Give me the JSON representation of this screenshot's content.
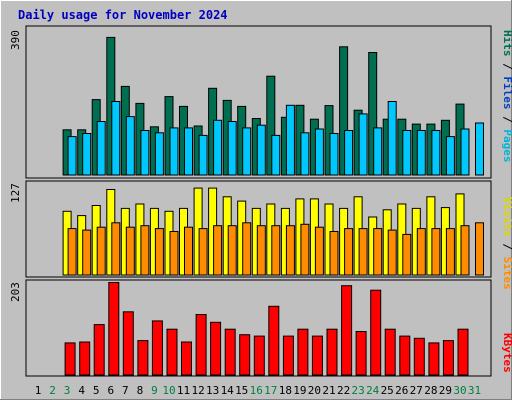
{
  "chart_data": {
    "type": "bar",
    "title": "Daily usage for November 2024",
    "categories": [
      "1",
      "2",
      "3",
      "4",
      "5",
      "6",
      "7",
      "8",
      "9",
      "10",
      "11",
      "12",
      "13",
      "14",
      "15",
      "16",
      "17",
      "18",
      "19",
      "20",
      "21",
      "22",
      "23",
      "24",
      "25",
      "26",
      "27",
      "28",
      "29",
      "30",
      "31"
    ],
    "weekend_days": [
      "2",
      "3",
      "9",
      "10",
      "16",
      "17",
      "23",
      "24",
      "30",
      "31"
    ],
    "panels": [
      {
        "id": "pages-files-hits",
        "ylabel_max": "390",
        "ymax": 390,
        "series": [
          {
            "name": "Hits",
            "color": "#006E50",
            "values": [
              null,
              null,
              120,
              120,
              200,
              365,
              235,
              190,
              128,
              208,
              182,
              130,
              230,
              198,
              182,
              150,
              262,
              153,
              185,
              148,
              184,
              340,
              172,
              325,
              148,
              148,
              135,
              135,
              145,
              188,
              null
            ]
          },
          {
            "name": "Files",
            "color": "#00C8FF",
            "values": [
              null,
              null,
              102,
              110,
              142,
              195,
              155,
              118,
              112,
              125,
              125,
              105,
              145,
              142,
              125,
              132,
              105,
              185,
              112,
              122,
              110,
              118,
              162,
              125,
              195,
              118,
              118,
              118,
              102,
              122,
              138
            ]
          },
          {
            "name": "Pages",
            "color": "#00C8FF",
            "values": []
          }
        ],
        "legend": [
          {
            "text": "Pages",
            "color": "#00B4D8"
          },
          {
            "text": "Files",
            "color": "#0040C0"
          },
          {
            "text": "Hits",
            "color": "#006E50"
          }
        ]
      },
      {
        "id": "sites-visits",
        "ylabel_max": "127",
        "ymax": 127,
        "series": [
          {
            "name": "Visits",
            "color": "#FFFF00",
            "values": [
              null,
              null,
              88,
              82,
              96,
              118,
              92,
              98,
              92,
              88,
              92,
              120,
              120,
              108,
              102,
              92,
              98,
              92,
              105,
              105,
              98,
              92,
              108,
              80,
              90,
              98,
              92,
              108,
              93,
              112,
              null
            ]
          },
          {
            "name": "Sites",
            "color": "#FF8C00",
            "values": [
              null,
              null,
              64,
              62,
              66,
              72,
              66,
              68,
              64,
              60,
              66,
              64,
              68,
              68,
              72,
              68,
              68,
              68,
              70,
              66,
              60,
              64,
              64,
              64,
              62,
              56,
              64,
              64,
              64,
              68,
              72
            ]
          }
        ],
        "legend": [
          {
            "text": "Sites",
            "color": "#FF8C00"
          },
          {
            "text": "Visits",
            "color": "#D8D800"
          }
        ]
      },
      {
        "id": "kbytes",
        "ylabel_max": "203",
        "ymax": 203,
        "series": [
          {
            "name": "KBytes",
            "color": "#FF0000",
            "values": [
              null,
              null,
              70,
              72,
              110,
              202,
              138,
              75,
              118,
              100,
              72,
              132,
              115,
              100,
              88,
              85,
              150,
              85,
              100,
              85,
              100,
              195,
              95,
              185,
              100,
              85,
              80,
              70,
              75,
              100,
              null
            ]
          }
        ],
        "legend": [
          {
            "text": "KBytes",
            "color": "#FF0000"
          }
        ]
      }
    ],
    "legend_separator": " / "
  }
}
